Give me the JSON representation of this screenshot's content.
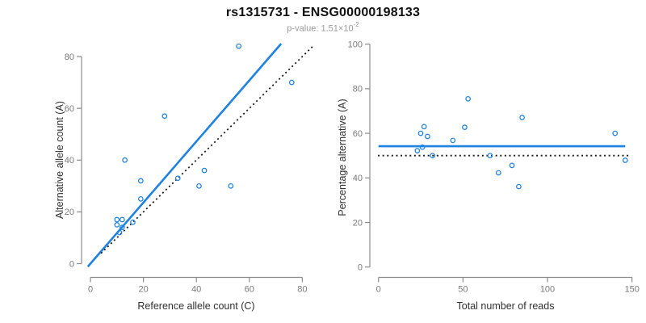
{
  "header": {
    "title": "rs1315731 - ENSG00000198133",
    "pvalue_label": "p-value: ",
    "pvalue_base": "1.51×10",
    "pvalue_exponent": "-2"
  },
  "colors": {
    "accent_blue": "#1E82E0",
    "identity_black": "#1a1a1a",
    "axis_gray": "#8c8c8c",
    "tick_label_gray": "#7a7a7a",
    "axis_title_dark": "#303030",
    "title_black": "#111111",
    "subtitle_gray": "#9a9a9a"
  },
  "chart_data": [
    {
      "type": "scatter",
      "title": "",
      "xlabel": "Reference allele count (C)",
      "ylabel": "Alternative allele count (A)",
      "xlim": [
        0,
        80
      ],
      "ylim": [
        0,
        80
      ],
      "xticks": [
        0,
        20,
        40,
        60,
        80
      ],
      "yticks": [
        0,
        20,
        40,
        60,
        80
      ],
      "grid": false,
      "points": [
        [
          56,
          84
        ],
        [
          76,
          70
        ],
        [
          28,
          57
        ],
        [
          13,
          40
        ],
        [
          43,
          36
        ],
        [
          33,
          33
        ],
        [
          19,
          32
        ],
        [
          41,
          30
        ],
        [
          53,
          30
        ],
        [
          19,
          25
        ],
        [
          12,
          17
        ],
        [
          10,
          17
        ],
        [
          16,
          16
        ],
        [
          10,
          15
        ],
        [
          12,
          14
        ],
        [
          11,
          12
        ]
      ],
      "lines": [
        {
          "name": "fit-line",
          "slope": 1.18,
          "intercept": 0,
          "x_range": [
            -1,
            72
          ],
          "style": "solid"
        },
        {
          "name": "identity-line",
          "slope": 1,
          "intercept": 0,
          "x_range": [
            4,
            84
          ],
          "style": "dotted"
        }
      ]
    },
    {
      "type": "scatter",
      "title": "",
      "xlabel": "Total number of reads",
      "ylabel": "Percentage alternative (A)",
      "xlim": [
        0,
        150
      ],
      "ylim": [
        0,
        100
      ],
      "xticks": [
        0,
        50,
        100,
        150
      ],
      "yticks": [
        0,
        20,
        40,
        60,
        80,
        100
      ],
      "grid": false,
      "points": [
        [
          140,
          60
        ],
        [
          146,
          47.9
        ],
        [
          85,
          67.1
        ],
        [
          53,
          75.5
        ],
        [
          79,
          45.6
        ],
        [
          66,
          50
        ],
        [
          51,
          62.7
        ],
        [
          71,
          42.3
        ],
        [
          83,
          36.1
        ],
        [
          44,
          56.8
        ],
        [
          29,
          58.6
        ],
        [
          27,
          63
        ],
        [
          32,
          50
        ],
        [
          25,
          60
        ],
        [
          26,
          53.8
        ],
        [
          23,
          52.2
        ]
      ],
      "lines": [
        {
          "name": "mean-line",
          "slope": 0,
          "intercept": 54.2,
          "x_range": [
            0,
            146
          ],
          "style": "solid"
        },
        {
          "name": "reference-line",
          "slope": 0,
          "intercept": 50,
          "x_range": [
            -0.3,
            148
          ],
          "style": "dotted"
        }
      ]
    }
  ]
}
